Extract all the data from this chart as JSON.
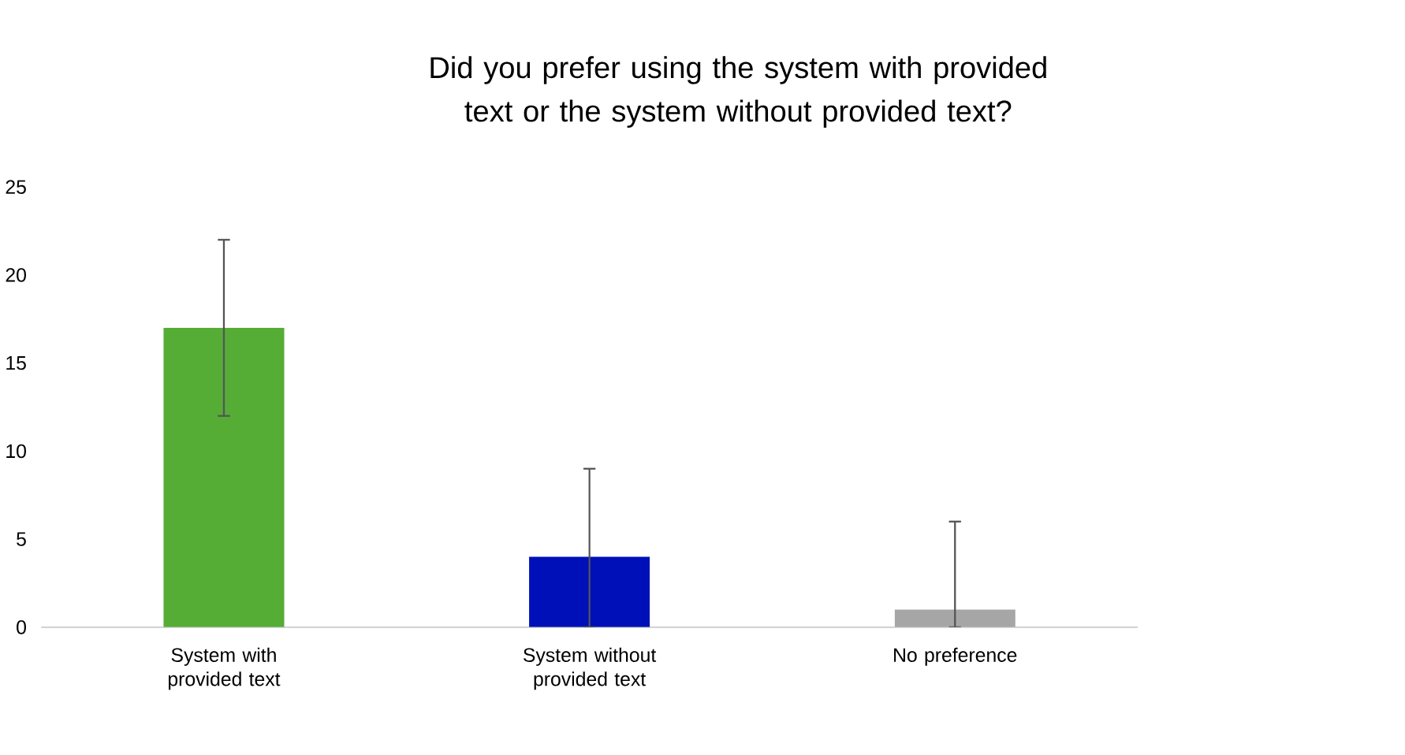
{
  "chart_data": {
    "type": "bar",
    "title": "Did you prefer using the system with provided text or the system without provided text?",
    "categories": [
      "System with provided text",
      "System without provided text",
      "No preference"
    ],
    "values": [
      17,
      4,
      1
    ],
    "colors": [
      "#55ad36",
      "#0010b8",
      "#a6a6a6"
    ],
    "errors": [
      [
        12,
        22
      ],
      [
        0,
        9
      ],
      [
        0,
        6
      ]
    ],
    "ylim": [
      0,
      25
    ],
    "yticks": [
      0,
      5,
      10,
      15,
      20,
      25
    ]
  }
}
